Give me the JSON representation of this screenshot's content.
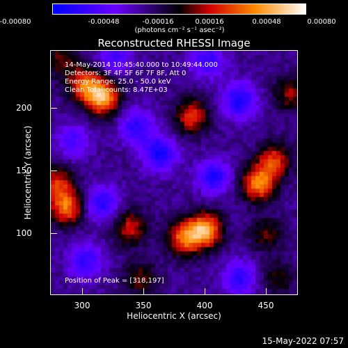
{
  "chart_data": {
    "type": "heatmap",
    "title": "Reconstructed RHESSI Image",
    "xlabel": "Heliocentric X (arcsec)",
    "ylabel": "Heliocentric Y (arcsec)",
    "xlim": [
      278,
      470
    ],
    "ylim": [
      50,
      232
    ],
    "x_ticks": [
      "300",
      "350",
      "400",
      "450"
    ],
    "y_ticks": [
      "100",
      "150",
      "200"
    ],
    "colorbar": {
      "ticks": [
        "-0.00080",
        "-0.00048",
        "-0.00016",
        "0.00016",
        "0.00048",
        "0.00080"
      ],
      "unit": "(photons cm⁻² s⁻¹ asec⁻²)",
      "range": [
        -0.0008,
        0.0008
      ],
      "colors": [
        "#0000ff",
        "#6a00ff",
        "#000000",
        "#d20000",
        "#ff8a00",
        "#ffffff"
      ]
    },
    "annotations": [
      "14-May-2014 10:45:40.000 to 10:49:44.000",
      "Detectors: 3F 4F 5F 6F 7F 8F, Att 0",
      "Energy Range: 25.0 - 50.0 keV",
      "Clean    Total counts: 8.47E+03"
    ],
    "peak_label": "Position of Peak = [318,197]",
    "sources": [
      {
        "x": 318,
        "y": 197,
        "value": 0.0008
      },
      {
        "x": 304,
        "y": 207,
        "value": 0.00055
      },
      {
        "x": 398,
        "y": 98,
        "value": 0.00078
      },
      {
        "x": 382,
        "y": 92,
        "value": 0.0006
      },
      {
        "x": 440,
        "y": 133,
        "value": 0.0007
      },
      {
        "x": 452,
        "y": 150,
        "value": 0.0005
      },
      {
        "x": 290,
        "y": 115,
        "value": 0.00062
      },
      {
        "x": 283,
        "y": 133,
        "value": 0.00045
      },
      {
        "x": 340,
        "y": 100,
        "value": 0.00042
      },
      {
        "x": 388,
        "y": 183,
        "value": 0.0005
      },
      {
        "x": 446,
        "y": 95,
        "value": 0.00028
      },
      {
        "x": 465,
        "y": 200,
        "value": 0.00035
      },
      {
        "x": 348,
        "y": 62,
        "value": 0.0003
      },
      {
        "x": 455,
        "y": 62,
        "value": 0.00025
      },
      {
        "x": 285,
        "y": 225,
        "value": 0.0003
      },
      {
        "x": 345,
        "y": 175,
        "value": -0.00042
      },
      {
        "x": 363,
        "y": 155,
        "value": -0.0005
      },
      {
        "x": 425,
        "y": 195,
        "value": -0.0005
      },
      {
        "x": 405,
        "y": 138,
        "value": -0.00045
      },
      {
        "x": 318,
        "y": 118,
        "value": -0.00042
      },
      {
        "x": 305,
        "y": 75,
        "value": -0.0004
      },
      {
        "x": 425,
        "y": 62,
        "value": -0.0004
      },
      {
        "x": 328,
        "y": 228,
        "value": -0.00035
      },
      {
        "x": 400,
        "y": 225,
        "value": -0.0004
      },
      {
        "x": 295,
        "y": 165,
        "value": -0.0003
      }
    ]
  },
  "footer": {
    "timestamp": "15-May-2022 07:57"
  }
}
